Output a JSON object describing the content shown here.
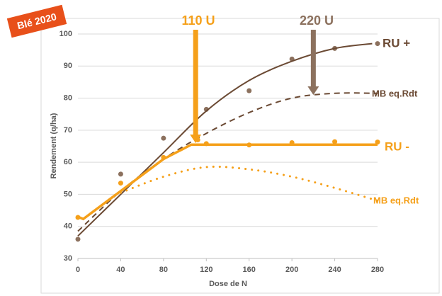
{
  "badge": "Blé 2020",
  "chart_data": {
    "type": "line",
    "x_label": "Dose de N",
    "y_label": "Rendement (q/ha)",
    "xlim": [
      0,
      280
    ],
    "xticks": [
      0,
      40,
      80,
      120,
      160,
      200,
      240,
      280
    ],
    "ylim": [
      30,
      100
    ],
    "yticks": [
      30,
      40,
      50,
      60,
      70,
      80,
      90,
      100
    ],
    "grid": true,
    "series": [
      {
        "style": "points",
        "color": "#8c715e",
        "x": [
          0,
          40,
          80,
          120,
          160,
          200,
          240,
          280
        ],
        "values": [
          36,
          56.3,
          67.5,
          76.5,
          82.3,
          92.2,
          95.5,
          97
        ]
      },
      {
        "style": "solid",
        "color": "#6b4a34",
        "x": [
          0,
          40,
          80,
          120,
          160,
          200,
          240,
          275
        ],
        "values": [
          37,
          50,
          63,
          76,
          85.5,
          91.5,
          95.5,
          97
        ]
      },
      {
        "style": "dashed",
        "color": "#6b4a34",
        "x": [
          0,
          40,
          80,
          120,
          160,
          200,
          240,
          280
        ],
        "values": [
          38.5,
          51,
          61,
          69,
          75.5,
          80,
          81.5,
          81.5
        ]
      },
      {
        "style": "points",
        "color": "#f5a01a",
        "x": [
          0,
          40,
          80,
          112,
          120,
          160,
          200,
          240,
          280
        ],
        "values": [
          42.8,
          53.5,
          61.5,
          67,
          65.8,
          65.4,
          66.1,
          66.4,
          66.3
        ]
      },
      {
        "style": "solid",
        "color": "#f5a01a",
        "x": [
          0,
          5,
          80,
          106,
          280
        ],
        "values": [
          43,
          42.3,
          61,
          65.5,
          65.5
        ]
      },
      {
        "style": "dotted",
        "color": "#f5a01a",
        "x": [
          40,
          80,
          120,
          160,
          200,
          240,
          280
        ],
        "values": [
          50.5,
          55.5,
          58.5,
          57.8,
          55.5,
          52,
          48
        ]
      }
    ],
    "arrows": [
      {
        "label": "110 U",
        "x": 110,
        "y": 66,
        "color": "#f5a01a"
      },
      {
        "label": "220 U",
        "x": 220,
        "y": 81,
        "color": "#8c715e"
      }
    ],
    "annotations": [
      {
        "text": "RU +",
        "color": "#6b4a34"
      },
      {
        "text": "MB eq.Rdt",
        "color": "#6b4a34"
      },
      {
        "text": "RU -",
        "color": "#f5a01a"
      },
      {
        "text": "MB eq.Rdt",
        "color": "#f5a01a"
      }
    ]
  }
}
